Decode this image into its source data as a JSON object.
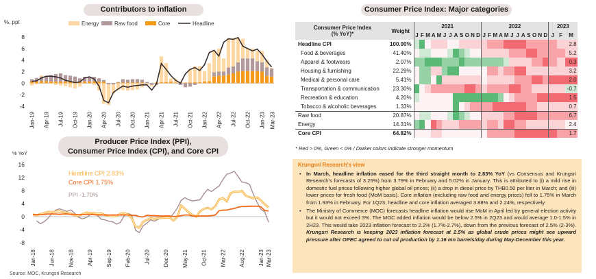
{
  "source": "Source: MOC, Krungsri Research",
  "chart_data": [
    {
      "type": "bar",
      "subtype": "stacked-bar-with-line",
      "title": "Contributors to inflation",
      "ylabel": "%, ppt",
      "ylim": [
        -4,
        8
      ],
      "yticks": [
        -4,
        -2,
        0,
        2,
        4,
        6,
        8
      ],
      "x_tick_labels": [
        "Jan-19",
        "Apr-19",
        "Jul-19",
        "Oct-19",
        "Jan-20",
        "Apr-20",
        "Jul-20",
        "Oct-20",
        "Jan-21",
        "Apr-21",
        "Jul-21",
        "Oct-21",
        "Jan-22",
        "Apr-22",
        "Jul-22",
        "Oct-22",
        "Jan-23",
        "Mar-23"
      ],
      "legend": [
        "Energy",
        "Raw food",
        "Core",
        "Headline"
      ],
      "legend_position": "top",
      "colors": {
        "Energy": "#fdd8a4",
        "Raw food": "#b29a9c",
        "Core": "#f59b1c",
        "Headline": "#3a2f2f"
      },
      "categories": [
        "Jan-19",
        "Feb-19",
        "Mar-19",
        "Apr-19",
        "May-19",
        "Jun-19",
        "Jul-19",
        "Aug-19",
        "Sep-19",
        "Oct-19",
        "Nov-19",
        "Dec-19",
        "Jan-20",
        "Feb-20",
        "Mar-20",
        "Apr-20",
        "May-20",
        "Jun-20",
        "Jul-20",
        "Aug-20",
        "Sep-20",
        "Oct-20",
        "Nov-20",
        "Dec-20",
        "Jan-21",
        "Feb-21",
        "Mar-21",
        "Apr-21",
        "May-21",
        "Jun-21",
        "Jul-21",
        "Aug-21",
        "Sep-21",
        "Oct-21",
        "Nov-21",
        "Dec-21",
        "Jan-22",
        "Feb-22",
        "Mar-22",
        "Apr-22",
        "May-22",
        "Jun-22",
        "Jul-22",
        "Aug-22",
        "Sep-22",
        "Oct-22",
        "Nov-22",
        "Dec-22",
        "Jan-23",
        "Feb-23",
        "Mar-23"
      ],
      "series": [
        {
          "name": "Core",
          "values": [
            0.3,
            0.3,
            0.35,
            0.35,
            0.3,
            0.3,
            0.3,
            0.3,
            0.3,
            0.25,
            0.25,
            0.3,
            0.3,
            0.3,
            0.25,
            0.25,
            0.0,
            0.0,
            0.1,
            0.1,
            0.1,
            0.1,
            0.1,
            0.1,
            0.0,
            0.0,
            0.1,
            0.15,
            0.2,
            0.25,
            0.1,
            0.1,
            0.1,
            0.1,
            0.15,
            0.15,
            0.3,
            0.35,
            1.2,
            1.3,
            1.3,
            1.5,
            1.7,
            2.0,
            2.1,
            2.1,
            2.1,
            2.1,
            2.0,
            1.25,
            1.15
          ]
        },
        {
          "name": "Raw food",
          "values": [
            0.4,
            0.6,
            0.8,
            0.9,
            1.1,
            1.3,
            1.4,
            1.1,
            1.0,
            0.9,
            0.6,
            0.8,
            0.8,
            0.8,
            0.6,
            0.3,
            -0.2,
            -0.2,
            0.1,
            0.6,
            0.5,
            0.6,
            0.6,
            0.5,
            0.2,
            -0.3,
            -0.3,
            0.0,
            0.0,
            0.0,
            0.0,
            -0.3,
            -0.7,
            -0.6,
            -0.3,
            0.0,
            0.0,
            0.0,
            0.7,
            0.7,
            0.7,
            1.2,
            1.2,
            1.6,
            2.2,
            2.2,
            2.2,
            1.7,
            1.6,
            1.5,
            1.4
          ]
        },
        {
          "name": "Energy",
          "values": [
            -0.4,
            -0.2,
            0.2,
            0.0,
            -0.1,
            -0.3,
            -0.4,
            -0.5,
            -0.7,
            -0.9,
            -0.6,
            0.0,
            0.0,
            -0.3,
            -1.3,
            -3.6,
            -3.6,
            -1.6,
            -1.2,
            -1.2,
            -1.3,
            -1.2,
            -1.1,
            -0.7,
            -0.3,
            -0.3,
            0.1,
            4.5,
            3.3,
            0.6,
            0.6,
            0.2,
            0.0,
            2.3,
            2.8,
            2.8,
            1.8,
            3.1,
            3.7,
            4.0,
            2.3,
            5.1,
            4.9,
            4.3,
            3.4,
            1.8,
            1.7,
            1.8,
            2.0,
            1.3,
            0.1
          ]
        },
        {
          "name": "Headline",
          "values": [
            0.3,
            0.4,
            0.9,
            1.2,
            1.2,
            1.1,
            0.9,
            0.5,
            0.3,
            0.1,
            0.2,
            0.9,
            1.1,
            0.7,
            -0.5,
            -3.0,
            -3.4,
            -1.6,
            -1.0,
            -0.5,
            -0.7,
            -0.5,
            -0.4,
            -0.3,
            -0.3,
            -1.2,
            -0.1,
            3.4,
            2.4,
            1.3,
            0.5,
            0.0,
            1.6,
            2.4,
            2.7,
            2.2,
            3.2,
            5.3,
            5.7,
            4.7,
            7.1,
            7.7,
            7.6,
            7.9,
            6.4,
            6.0,
            5.6,
            5.9,
            5.0,
            3.8,
            2.8
          ]
        }
      ]
    },
    {
      "type": "line",
      "title": "Producer Price Index (PPI), Consumer Price Index (CPI), and Core CPI",
      "title_lines": [
        "Producer Price Index (PPI),",
        "Consumer Price Index (CPI), and Core CPI"
      ],
      "ylabel": "% YoY",
      "ylim": [
        -8,
        16
      ],
      "yticks": [
        -8,
        -4,
        0,
        4,
        8,
        12,
        16
      ],
      "x_tick_labels": [
        "Jan-18",
        "Jun-18",
        "Nov-18",
        "Apr-19",
        "Sep-19",
        "Feb-20",
        "Jul-20",
        "Dec-20",
        "May-21",
        "Oct-21",
        "Mar-22",
        "Aug-22",
        "Jan-23",
        "Mar-23"
      ],
      "annotations": [
        {
          "text": "Headline CPI 2.83%",
          "series": "Headline CPI"
        },
        {
          "text": "Core CPI 1.75%",
          "series": "Core CPI"
        },
        {
          "text": "PPI -1.70%",
          "series": "PPI"
        }
      ],
      "colors": {
        "Headline CPI": "#f9b548",
        "Core CPI": "#f26a1b",
        "PPI": "#a88e8e"
      },
      "x_start": "Jan-18",
      "series": [
        {
          "name": "PPI",
          "values": [
            -1.3,
            -2.2,
            -1.5,
            -0.5,
            1.0,
            2.0,
            2.4,
            2.0,
            1.6,
            2.1,
            1.0,
            -0.2,
            -0.7,
            -0.3,
            0.5,
            1.0,
            0.3,
            -0.8,
            -1.0,
            -1.4,
            -1.6,
            -2.3,
            -1.8,
            0.2,
            1.0,
            0.5,
            -4.2,
            -4.9,
            -2.8,
            -2.0,
            -1.0,
            -1.4,
            -0.8,
            -0.3,
            -0.2,
            -0.5,
            1.0,
            2.6,
            5.0,
            5.8,
            5.2,
            4.8,
            5.0,
            5.2,
            7.0,
            8.4,
            7.7,
            8.6,
            9.4,
            11.4,
            13.0,
            13.4,
            13.9,
            12.3,
            10.6,
            10.4,
            9.9,
            6.9,
            4.3,
            2.2,
            1.5,
            -1.7
          ]
        },
        {
          "name": "Headline CPI",
          "values": [
            0.7,
            0.4,
            0.8,
            1.1,
            1.5,
            1.4,
            1.5,
            1.6,
            1.3,
            1.2,
            0.9,
            0.4,
            0.3,
            0.7,
            1.2,
            1.2,
            1.1,
            0.9,
            1.0,
            0.5,
            0.3,
            0.1,
            0.2,
            0.9,
            1.1,
            0.7,
            -0.5,
            -3.0,
            -3.4,
            -1.6,
            -1.0,
            -0.5,
            -0.7,
            -0.5,
            -0.4,
            -0.3,
            -0.3,
            -1.2,
            -0.1,
            3.4,
            2.4,
            1.3,
            0.5,
            0.0,
            1.6,
            2.4,
            2.7,
            2.2,
            3.2,
            5.3,
            5.7,
            4.7,
            7.1,
            7.7,
            7.6,
            7.9,
            6.4,
            6.0,
            5.6,
            5.9,
            5.0,
            3.8,
            2.83
          ]
        },
        {
          "name": "Core CPI",
          "values": [
            0.6,
            0.6,
            0.6,
            0.7,
            0.8,
            0.8,
            0.8,
            0.7,
            0.8,
            0.8,
            0.7,
            0.7,
            0.6,
            0.6,
            0.6,
            0.6,
            0.6,
            0.5,
            0.5,
            0.5,
            0.5,
            0.5,
            0.5,
            0.5,
            0.5,
            0.5,
            0.4,
            0.4,
            0.0,
            -0.1,
            0.4,
            0.3,
            0.3,
            0.2,
            0.2,
            0.2,
            0.2,
            0.0,
            0.1,
            0.3,
            0.5,
            0.5,
            0.2,
            0.1,
            0.2,
            0.2,
            0.2,
            0.3,
            0.5,
            1.8,
            2.0,
            2.0,
            2.3,
            2.5,
            2.9,
            3.1,
            3.1,
            3.2,
            3.2,
            3.2,
            3.0,
            1.9,
            1.75
          ]
        }
      ]
    },
    {
      "type": "heatmap",
      "title": "Consumer Price Index: Major categories",
      "columns_header": [
        "Consumer Price Index",
        "(% YoY)*"
      ],
      "weight_header": "Weight",
      "years": [
        {
          "label": "2021",
          "months": 12
        },
        {
          "label": "2022",
          "months": 12
        },
        {
          "label": "2023",
          "months": 3
        }
      ],
      "months": [
        "J",
        "F",
        "M",
        "A",
        "M",
        "J",
        "J",
        "A",
        "S",
        "O",
        "N",
        "D",
        "J",
        "F",
        "M",
        "A",
        "M",
        "J",
        "J",
        "A",
        "S",
        "O",
        "N",
        "D",
        "J",
        "F",
        "M"
      ],
      "scale_note": "Intensity scale: negative = green, positive = red, magnitude 0-3",
      "rows": [
        {
          "label": "Headline CPI",
          "weight": "100.00%",
          "latest": "2.8",
          "bold": true,
          "indent": false,
          "group_sep": false,
          "cells": [
            -1,
            -3,
            0,
            1,
            1,
            1,
            0,
            0,
            1,
            1,
            1,
            1,
            1,
            2,
            2,
            2,
            3,
            3,
            3,
            3,
            2,
            2,
            2,
            2,
            2,
            1,
            1
          ]
        },
        {
          "label": "Food & beverages",
          "weight": "41.40%",
          "latest": "5.2",
          "bold": false,
          "indent": true,
          "group_sep": false,
          "cells": [
            0,
            -1,
            -1,
            0,
            0,
            0,
            -1,
            -3,
            -2,
            -1,
            0,
            0,
            1,
            1,
            1,
            1,
            1,
            2,
            2,
            2,
            3,
            3,
            2,
            2,
            2,
            2,
            1
          ]
        },
        {
          "label": "Apparel & footwears",
          "weight": "2.07%",
          "latest": "0.3",
          "bold": false,
          "indent": true,
          "group_sep": false,
          "cells": [
            -2,
            -2,
            -3,
            -3,
            -3,
            -2,
            -2,
            -2,
            -3,
            -2,
            -2,
            -2,
            -2,
            -2,
            -2,
            -2,
            -1,
            1,
            1,
            1,
            1,
            2,
            2,
            3,
            2,
            1,
            3
          ]
        },
        {
          "label": "Housing & furnishing",
          "weight": "22.29%",
          "latest": "3.2",
          "bold": false,
          "indent": true,
          "group_sep": false,
          "cells": [
            0,
            -2,
            -2,
            1,
            1,
            -2,
            -3,
            -3,
            0,
            0,
            0,
            0,
            0,
            2,
            2,
            1,
            2,
            2,
            3,
            3,
            1,
            1,
            1,
            1,
            1,
            1,
            1
          ]
        },
        {
          "label": "Medical & personal care",
          "weight": "5.41%",
          "latest": "2.0",
          "bold": false,
          "indent": true,
          "group_sep": false,
          "cells": [
            0,
            -2,
            -2,
            0,
            -3,
            1,
            1,
            1,
            1,
            1,
            1,
            1,
            0,
            1,
            1,
            1,
            1,
            1,
            2,
            2,
            2,
            3,
            3,
            2,
            3,
            3,
            3
          ]
        },
        {
          "label": "Transportation & communication",
          "weight": "23.30%",
          "latest": "-0.7",
          "bold": false,
          "indent": true,
          "group_sep": false,
          "cells": [
            -3,
            0,
            1,
            2,
            2,
            2,
            2,
            2,
            2,
            3,
            3,
            2,
            1,
            2,
            2,
            2,
            2,
            3,
            3,
            2,
            2,
            1,
            1,
            1,
            1,
            1,
            -1
          ]
        },
        {
          "label": "Recreation & education",
          "weight": "4.20%",
          "latest": "1.5",
          "bold": false,
          "indent": true,
          "group_sep": false,
          "cells": [
            -1,
            0,
            0,
            0,
            0,
            0,
            0,
            -3,
            -3,
            -3,
            -3,
            -3,
            -3,
            -3,
            -3,
            -2,
            0,
            1,
            2,
            2,
            2,
            2,
            3,
            3,
            3,
            3,
            3
          ]
        },
        {
          "label": "Tobacco & alcoholic beverages",
          "weight": "1.33%",
          "latest": "0.7",
          "bold": false,
          "indent": true,
          "group_sep": false,
          "cells": [
            0,
            0,
            0,
            0,
            0,
            0,
            0,
            -3,
            0,
            1,
            2,
            2,
            2,
            2,
            3,
            3,
            3,
            3,
            3,
            3,
            2,
            2,
            1,
            1,
            1,
            1,
            1
          ]
        },
        {
          "label": "Raw food",
          "weight": "20.87%",
          "latest": "6,7",
          "bold": false,
          "indent": false,
          "group_sep": true,
          "cells": [
            0,
            -1,
            -1,
            0,
            0,
            0,
            -1,
            -3,
            -2,
            -1,
            0,
            0,
            1,
            1,
            1,
            1,
            2,
            2,
            3,
            3,
            3,
            3,
            2,
            2,
            2,
            2,
            2
          ]
        },
        {
          "label": "Energy",
          "weight": "14.31%",
          "latest": "2.4",
          "bold": false,
          "indent": false,
          "group_sep": false,
          "cells": [
            -2,
            -3,
            0,
            3,
            2,
            1,
            1,
            1,
            2,
            2,
            2,
            2,
            1,
            2,
            2,
            1,
            3,
            3,
            2,
            2,
            1,
            1,
            1,
            1,
            1,
            1,
            0
          ]
        },
        {
          "label": "Core CPI",
          "weight": "64.82%",
          "latest": "1.7",
          "bold": true,
          "indent": false,
          "group_sep": true,
          "cells": [
            0,
            0,
            0,
            1,
            1,
            0,
            0,
            0,
            0,
            0,
            0,
            0,
            0,
            2,
            2,
            2,
            2,
            2,
            3,
            3,
            3,
            3,
            3,
            3,
            3,
            2,
            2
          ]
        }
      ],
      "footnote": "* Red > 0%, Green < 0% / Darker colors indicate stronger momentum"
    }
  ],
  "view": {
    "title": "Krungsri Research's view",
    "bullets": [
      {
        "bold_lead": "In March, headline inflation eased for the third straight month to 2.83% YoY",
        "text": " (vs Consensus and Krungsri Research's forecasts of 3.25%) from 3.79% in February and 5.02% in January. This is attributed to (i) a mild rise in domestic fuel prices following higher global oil prices; (ii) a drop in diesel price by THB0.50 per liter in March; and (iii) lower prices for fresh food (MoM basis). Core inflation (excluding raw food and energy prices) fell to 1.75% in March from 1.93% in February. For 1Q23, headline and core inflation averaged 3.88% and 2.24%, respectively.",
        "bold_tail": ""
      },
      {
        "bold_lead": "",
        "text": "The Ministry of Commerce (MOC) forecasts headline inflation would rise MoM in April led by general election activity but it would not exceed 3%. The MOC added inflation would be below 2.5% in 2Q23 and would average 1.0-1.5% in 2H23. This would take 2023 inflation forecast to 2.2% (1.7%-2.7%), down from the previous forecast of 2.5% (2-3%). ",
        "bold_tail": "Krungsri Research is keeping 2023 inflation forecast at 2.5% as global crude prices might see upward pressure after OPEC agreed to cut oil production by 1.16 mn barrels/day during May-December this year."
      }
    ]
  }
}
